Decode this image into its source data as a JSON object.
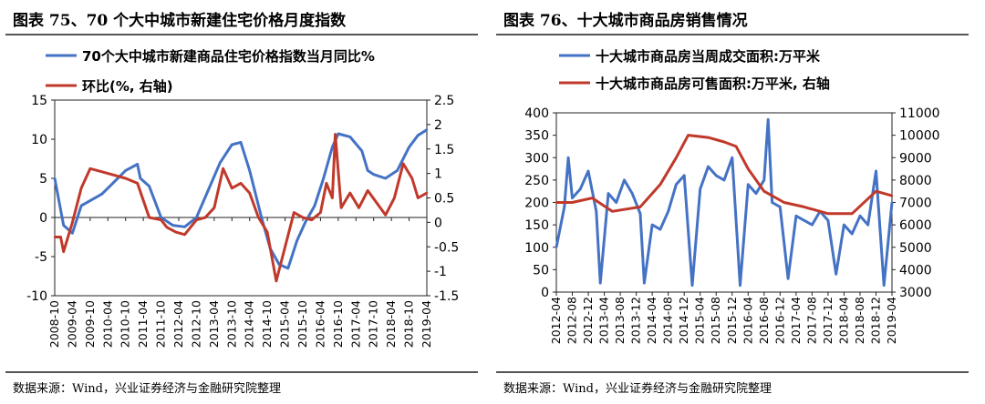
{
  "left": {
    "title": "图表 75、70 个大中城市新建住宅价格月度指数",
    "source": "数据来源：Wind，兴业证券经济与金融研究院整理"
  },
  "right": {
    "title": "图表 76、十大城市商品房销售情况",
    "source": "数据来源：Wind，兴业证券经济与金融研究院整理"
  },
  "chart_data": [
    {
      "type": "line",
      "series": [
        {
          "name": "70个大中城市新建商品住宅价格指数当月同比%",
          "axis": "left",
          "color": "#4472C4",
          "x": [
            "2008-10",
            "2009-01",
            "2009-04",
            "2009-07",
            "2010-02",
            "2010-06",
            "2010-10",
            "2011-02",
            "2011-03",
            "2011-06",
            "2011-10",
            "2012-02",
            "2012-06",
            "2012-10",
            "2013-02",
            "2013-06",
            "2013-10",
            "2014-01",
            "2014-04",
            "2014-08",
            "2014-11",
            "2015-02",
            "2015-05",
            "2015-08",
            "2015-11",
            "2016-02",
            "2016-05",
            "2016-08",
            "2016-10",
            "2017-02",
            "2017-06",
            "2017-08",
            "2017-10",
            "2018-02",
            "2018-06",
            "2018-10",
            "2019-01",
            "2019-04"
          ],
          "values": [
            5,
            -1,
            -2,
            1.5,
            3,
            4.5,
            6,
            6.8,
            5,
            4,
            0,
            -1,
            -1.2,
            0,
            3.5,
            7,
            9.3,
            9.6,
            6,
            0,
            -4,
            -6,
            -6.5,
            -3,
            -0.5,
            1.5,
            5,
            9,
            10.7,
            10.3,
            8.5,
            6,
            5.5,
            5,
            6,
            9,
            10.5,
            11.2
          ]
        },
        {
          "name": "环比(%, 右轴)",
          "axis": "right",
          "color": "#C0392B",
          "x": [
            "2008-10",
            "2008-12",
            "2009-01",
            "2009-04",
            "2009-07",
            "2009-10",
            "2010-01",
            "2010-04",
            "2010-10",
            "2011-02",
            "2011-06",
            "2011-10",
            "2011-12",
            "2012-03",
            "2012-06",
            "2012-10",
            "2013-01",
            "2013-04",
            "2013-07",
            "2013-10",
            "2014-01",
            "2014-04",
            "2014-07",
            "2014-10",
            "2015-01",
            "2015-04",
            "2015-07",
            "2015-10",
            "2016-01",
            "2016-04",
            "2016-06",
            "2016-08",
            "2016-09",
            "2016-11",
            "2017-02",
            "2017-05",
            "2017-08",
            "2017-11",
            "2018-02",
            "2018-05",
            "2018-08",
            "2018-11",
            "2019-01",
            "2019-04"
          ],
          "values": [
            -0.3,
            -0.3,
            -0.6,
            0,
            0.7,
            1.1,
            1.05,
            1,
            0.9,
            0.8,
            0.1,
            0.05,
            -0.1,
            -0.2,
            -0.25,
            0.05,
            0.1,
            0.3,
            1.1,
            0.7,
            0.8,
            0.6,
            0.1,
            -0.2,
            -1.2,
            -0.5,
            0.2,
            0.1,
            0.05,
            0.2,
            0.8,
            0.5,
            1.8,
            0.3,
            0.6,
            0.3,
            0.65,
            0.4,
            0.15,
            0.5,
            1.2,
            0.9,
            0.5,
            0.6
          ]
        }
      ],
      "x_ticks": [
        "2008-10",
        "2009-04",
        "2009-10",
        "2010-04",
        "2010-10",
        "2011-04",
        "2011-10",
        "2012-04",
        "2012-10",
        "2013-04",
        "2013-10",
        "2014-04",
        "2014-10",
        "2015-04",
        "2015-10",
        "2016-04",
        "2016-10",
        "2017-04",
        "2017-10",
        "2018-04",
        "2018-10",
        "2019-04"
      ],
      "ylim_left": [
        -10,
        15
      ],
      "yticks_left": [
        15,
        10,
        5,
        0,
        -5,
        -10
      ],
      "ylim_right": [
        -1.5,
        2.5
      ],
      "yticks_right": [
        2.5,
        2,
        1.5,
        1,
        0.5,
        0,
        -0.5,
        -1,
        -1.5
      ],
      "legend": "top",
      "grid": false
    },
    {
      "type": "line",
      "series": [
        {
          "name": "十大城市商品房当周成交面积:万平米",
          "axis": "left",
          "color": "#4472C4",
          "x": [
            "2012-04",
            "2012-06",
            "2012-07",
            "2012-08",
            "2012-10",
            "2012-12",
            "2013-02",
            "2013-03",
            "2013-05",
            "2013-07",
            "2013-09",
            "2013-11",
            "2014-01",
            "2014-02",
            "2014-04",
            "2014-06",
            "2014-08",
            "2014-10",
            "2014-12",
            "2015-02",
            "2015-04",
            "2015-06",
            "2015-08",
            "2015-10",
            "2015-12",
            "2016-02",
            "2016-04",
            "2016-06",
            "2016-08",
            "2016-09",
            "2016-10",
            "2016-12",
            "2017-02",
            "2017-04",
            "2017-06",
            "2017-08",
            "2017-10",
            "2017-12",
            "2018-02",
            "2018-04",
            "2018-06",
            "2018-08",
            "2018-10",
            "2018-12",
            "2019-02",
            "2019-04"
          ],
          "values": [
            100,
            190,
            300,
            210,
            230,
            270,
            180,
            20,
            220,
            200,
            250,
            220,
            175,
            20,
            150,
            140,
            180,
            240,
            260,
            15,
            230,
            280,
            260,
            250,
            300,
            15,
            240,
            220,
            250,
            385,
            200,
            190,
            30,
            170,
            160,
            150,
            180,
            160,
            40,
            150,
            130,
            170,
            150,
            270,
            15,
            200
          ]
        },
        {
          "name": "十大城市商品房可售面积:万平米, 右轴",
          "axis": "right",
          "color": "#C0392B",
          "x": [
            "2012-04",
            "2012-08",
            "2013-01",
            "2013-06",
            "2014-01",
            "2014-06",
            "2014-10",
            "2015-01",
            "2015-06",
            "2015-10",
            "2016-01",
            "2016-04",
            "2016-08",
            "2017-01",
            "2017-06",
            "2017-12",
            "2018-06",
            "2018-12",
            "2019-04"
          ],
          "values": [
            7000,
            7000,
            7200,
            6600,
            6800,
            7800,
            9000,
            10000,
            9900,
            9700,
            9500,
            8500,
            7500,
            7000,
            6800,
            6500,
            6500,
            7500,
            7300
          ]
        }
      ],
      "x_ticks": [
        "2012-04",
        "2012-08",
        "2012-12",
        "2013-04",
        "2013-08",
        "2013-12",
        "2014-04",
        "2014-08",
        "2014-12",
        "2015-04",
        "2015-08",
        "2015-12",
        "2016-04",
        "2016-08",
        "2016-12",
        "2017-04",
        "2017-08",
        "2017-12",
        "2018-04",
        "2018-08",
        "2018-12",
        "2019-04"
      ],
      "ylim_left": [
        0,
        400
      ],
      "yticks_left": [
        400,
        350,
        300,
        250,
        200,
        150,
        100,
        50,
        0
      ],
      "ylim_right": [
        3000,
        11000
      ],
      "yticks_right": [
        11000,
        10000,
        9000,
        8000,
        7000,
        6000,
        5000,
        4000,
        3000
      ],
      "legend": "top",
      "grid": false
    }
  ]
}
